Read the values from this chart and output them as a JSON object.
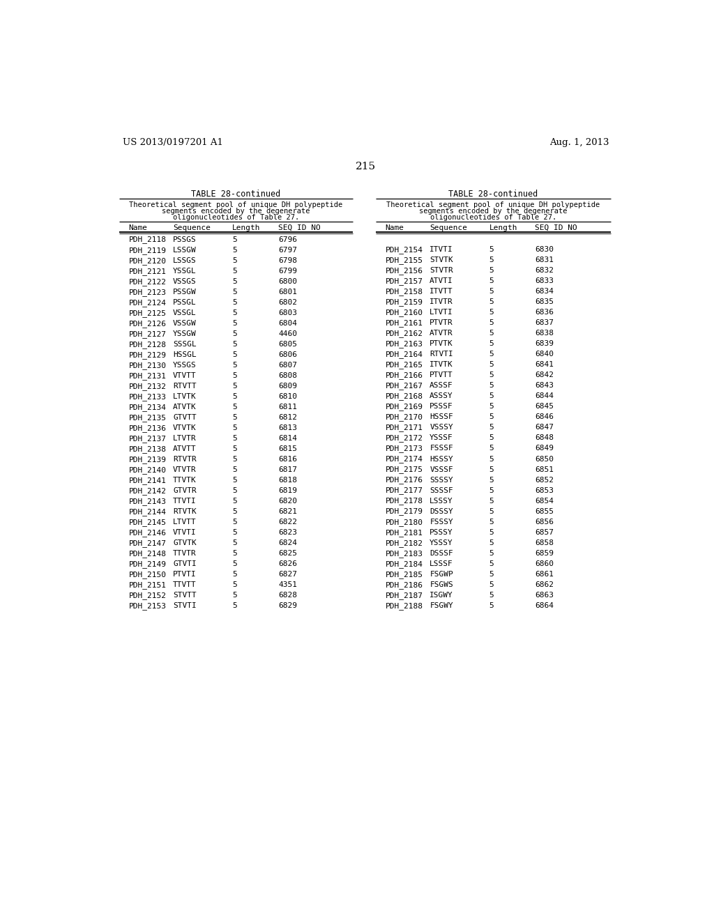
{
  "page_header_left": "US 2013/0197201 A1",
  "page_header_right": "Aug. 1, 2013",
  "page_number": "215",
  "table_title": "TABLE 28-continued",
  "table_subtitle_lines": [
    "Theoretical segment pool of unique DH polypeptide",
    "segments encoded by the degenerate",
    "oligonucleotides of Table 27."
  ],
  "col_headers": [
    "Name",
    "Sequence",
    "Length",
    "SEQ ID NO"
  ],
  "left_table": [
    [
      "PDH_2118",
      "PSSGS",
      "5",
      "6796"
    ],
    [
      "PDH_2119",
      "LSSGW",
      "5",
      "6797"
    ],
    [
      "PDH_2120",
      "LSSGS",
      "5",
      "6798"
    ],
    [
      "PDH_2121",
      "YSSGL",
      "5",
      "6799"
    ],
    [
      "PDH_2122",
      "VSSGS",
      "5",
      "6800"
    ],
    [
      "PDH_2123",
      "PSSGW",
      "5",
      "6801"
    ],
    [
      "PDH_2124",
      "PSSGL",
      "5",
      "6802"
    ],
    [
      "PDH_2125",
      "VSSGL",
      "5",
      "6803"
    ],
    [
      "PDH_2126",
      "VSSGW",
      "5",
      "6804"
    ],
    [
      "PDH_2127",
      "YSSGW",
      "5",
      "4460"
    ],
    [
      "PDH_2128",
      "SSSGL",
      "5",
      "6805"
    ],
    [
      "PDH_2129",
      "HSSGL",
      "5",
      "6806"
    ],
    [
      "PDH_2130",
      "YSSGS",
      "5",
      "6807"
    ],
    [
      "PDH_2131",
      "VTVTT",
      "5",
      "6808"
    ],
    [
      "PDH_2132",
      "RTVTT",
      "5",
      "6809"
    ],
    [
      "PDH_2133",
      "LTVTK",
      "5",
      "6810"
    ],
    [
      "PDH_2134",
      "ATVTK",
      "5",
      "6811"
    ],
    [
      "PDH_2135",
      "GTVTT",
      "5",
      "6812"
    ],
    [
      "PDH_2136",
      "VTVTK",
      "5",
      "6813"
    ],
    [
      "PDH_2137",
      "LTVTR",
      "5",
      "6814"
    ],
    [
      "PDH_2138",
      "ATVTT",
      "5",
      "6815"
    ],
    [
      "PDH_2139",
      "RTVTR",
      "5",
      "6816"
    ],
    [
      "PDH_2140",
      "VTVTR",
      "5",
      "6817"
    ],
    [
      "PDH_2141",
      "TTVTK",
      "5",
      "6818"
    ],
    [
      "PDH_2142",
      "GTVTR",
      "5",
      "6819"
    ],
    [
      "PDH_2143",
      "TTVTI",
      "5",
      "6820"
    ],
    [
      "PDH_2144",
      "RTVTK",
      "5",
      "6821"
    ],
    [
      "PDH_2145",
      "LTVTT",
      "5",
      "6822"
    ],
    [
      "PDH_2146",
      "VTVTI",
      "5",
      "6823"
    ],
    [
      "PDH_2147",
      "GTVTK",
      "5",
      "6824"
    ],
    [
      "PDH_2148",
      "TTVTR",
      "5",
      "6825"
    ],
    [
      "PDH_2149",
      "GTVTI",
      "5",
      "6826"
    ],
    [
      "PDH_2150",
      "PTVTI",
      "5",
      "6827"
    ],
    [
      "PDH_2151",
      "TTVTT",
      "5",
      "4351"
    ],
    [
      "PDH_2152",
      "STVTT",
      "5",
      "6828"
    ],
    [
      "PDH_2153",
      "STVTI",
      "5",
      "6829"
    ]
  ],
  "right_table": [
    [
      "PDH_2154",
      "ITVTI",
      "5",
      "6830"
    ],
    [
      "PDH_2155",
      "STVTK",
      "5",
      "6831"
    ],
    [
      "PDH_2156",
      "STVTR",
      "5",
      "6832"
    ],
    [
      "PDH_2157",
      "ATVTI",
      "5",
      "6833"
    ],
    [
      "PDH_2158",
      "ITVTT",
      "5",
      "6834"
    ],
    [
      "PDH_2159",
      "ITVTR",
      "5",
      "6835"
    ],
    [
      "PDH_2160",
      "LTVTI",
      "5",
      "6836"
    ],
    [
      "PDH_2161",
      "PTVTR",
      "5",
      "6837"
    ],
    [
      "PDH_2162",
      "ATVTR",
      "5",
      "6838"
    ],
    [
      "PDH_2163",
      "PTVTK",
      "5",
      "6839"
    ],
    [
      "PDH_2164",
      "RTVTI",
      "5",
      "6840"
    ],
    [
      "PDH_2165",
      "ITVTK",
      "5",
      "6841"
    ],
    [
      "PDH_2166",
      "PTVTT",
      "5",
      "6842"
    ],
    [
      "PDH_2167",
      "ASSSF",
      "5",
      "6843"
    ],
    [
      "PDH_2168",
      "ASSSY",
      "5",
      "6844"
    ],
    [
      "PDH_2169",
      "PSSSF",
      "5",
      "6845"
    ],
    [
      "PDH_2170",
      "HSSSF",
      "5",
      "6846"
    ],
    [
      "PDH_2171",
      "VSSSY",
      "5",
      "6847"
    ],
    [
      "PDH_2172",
      "YSSSF",
      "5",
      "6848"
    ],
    [
      "PDH_2173",
      "FSSSF",
      "5",
      "6849"
    ],
    [
      "PDH_2174",
      "HSSSY",
      "5",
      "6850"
    ],
    [
      "PDH_2175",
      "VSSSF",
      "5",
      "6851"
    ],
    [
      "PDH_2176",
      "SSSSY",
      "5",
      "6852"
    ],
    [
      "PDH_2177",
      "SSSSF",
      "5",
      "6853"
    ],
    [
      "PDH_2178",
      "LSSSY",
      "5",
      "6854"
    ],
    [
      "PDH_2179",
      "DSSSY",
      "5",
      "6855"
    ],
    [
      "PDH_2180",
      "FSSSY",
      "5",
      "6856"
    ],
    [
      "PDH_2181",
      "PSSSY",
      "5",
      "6857"
    ],
    [
      "PDH_2182",
      "YSSSY",
      "5",
      "6858"
    ],
    [
      "PDH_2183",
      "DSSSF",
      "5",
      "6859"
    ],
    [
      "PDH_2184",
      "LSSSF",
      "5",
      "6860"
    ],
    [
      "PDH_2185",
      "FSGWP",
      "5",
      "6861"
    ],
    [
      "PDH_2186",
      "FSGWS",
      "5",
      "6862"
    ],
    [
      "PDH_2187",
      "ISGWY",
      "5",
      "6863"
    ],
    [
      "PDH_2188",
      "FSGWY",
      "5",
      "6864"
    ]
  ],
  "bg_color": "#ffffff",
  "text_color": "#000000"
}
